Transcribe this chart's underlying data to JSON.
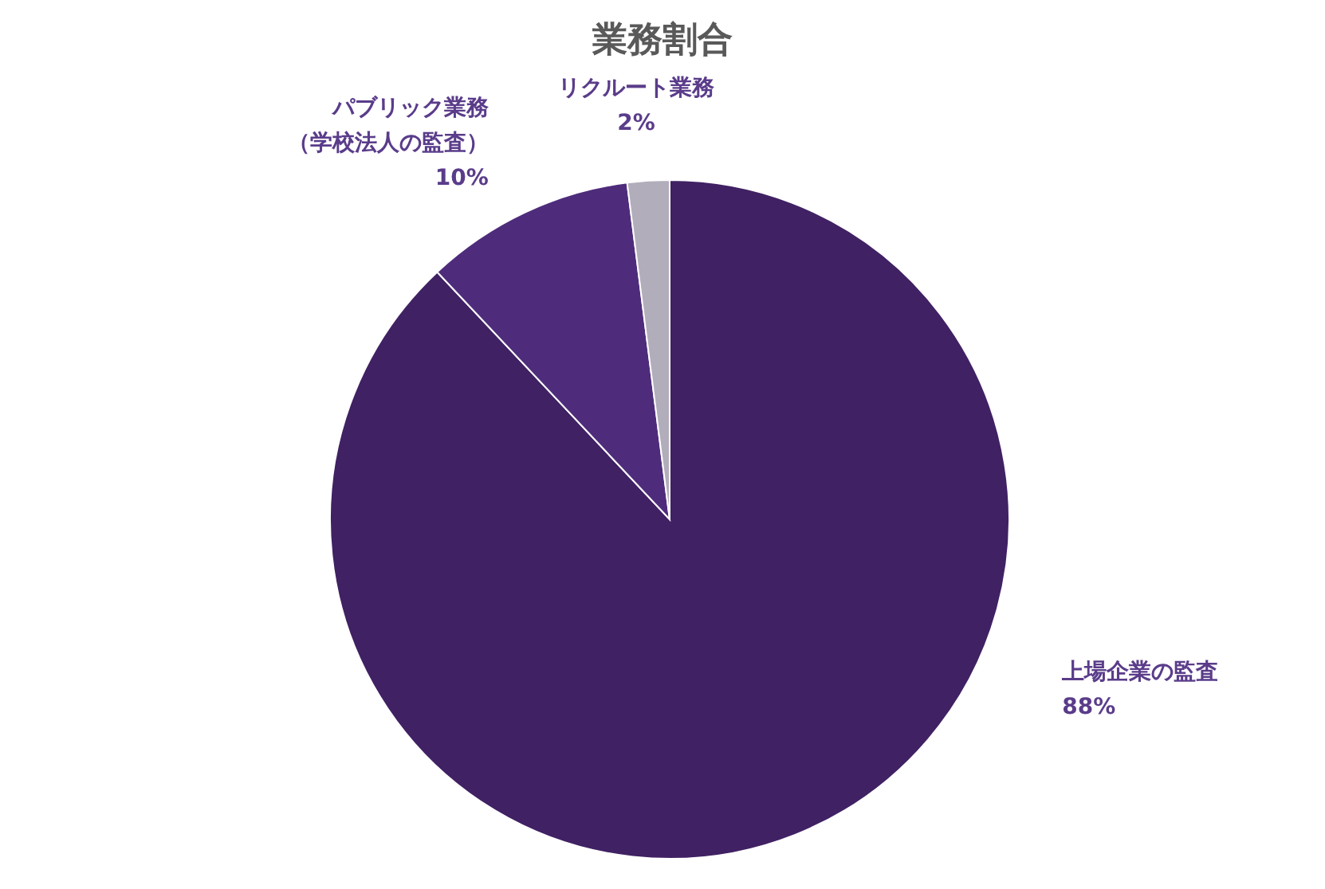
{
  "chart_data": {
    "type": "pie",
    "title": "業務割合",
    "categories": [
      "上場企業の監査",
      "パブリック業務（学校法人の監査）",
      "リクルート業務"
    ],
    "values": [
      88,
      10,
      2
    ],
    "value_labels": [
      "88%",
      "10%",
      "2%"
    ],
    "colors": [
      "#402163",
      "#4e2c7b",
      "#b2adba"
    ],
    "legend": false
  }
}
